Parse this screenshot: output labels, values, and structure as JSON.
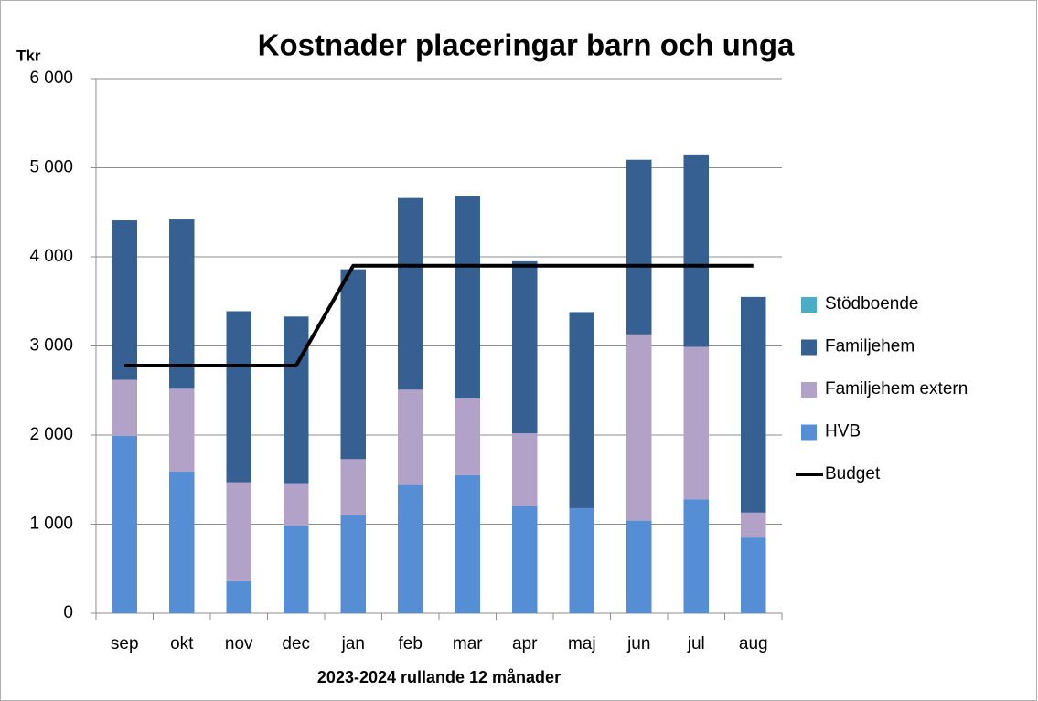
{
  "chart_data": {
    "type": "stacked_bar_line",
    "title": "Kostnader placeringar barn och unga",
    "y_label": "Tkr",
    "x_label": "2023-2024 rullande 12 månader",
    "categories": [
      "sep",
      "okt",
      "nov",
      "dec",
      "jan",
      "feb",
      "mar",
      "apr",
      "maj",
      "jun",
      "jul",
      "aug"
    ],
    "series": [
      {
        "name": "Stödboende",
        "color": "#4bacc6",
        "kind": "bar",
        "values": [
          0,
          0,
          0,
          0,
          0,
          0,
          0,
          0,
          0,
          0,
          0,
          0
        ]
      },
      {
        "name": "Familjehem",
        "color": "#376092",
        "kind": "bar",
        "values": [
          1790,
          1900,
          1920,
          1880,
          2130,
          2150,
          2270,
          1930,
          2200,
          1960,
          2150,
          2420
        ]
      },
      {
        "name": "Familjehem extern",
        "color": "#b3a2c7",
        "kind": "bar",
        "values": [
          630,
          930,
          1110,
          470,
          630,
          1070,
          860,
          820,
          0,
          2090,
          1710,
          280
        ]
      },
      {
        "name": "HVB",
        "color": "#558ed5",
        "kind": "bar",
        "values": [
          1990,
          1590,
          360,
          980,
          1100,
          1440,
          1550,
          1200,
          1180,
          1040,
          1280,
          850
        ]
      },
      {
        "name": "Budget",
        "color": "#000000",
        "kind": "line",
        "values": [
          2780,
          2780,
          2780,
          2780,
          3900,
          3900,
          3900,
          3900,
          3900,
          3900,
          3900,
          3900
        ]
      }
    ],
    "ylim": [
      0,
      6000
    ],
    "yticks": [
      0,
      {
        "value": 1000,
        "label": "1 000"
      },
      {
        "value": 2000,
        "label": "2 000"
      },
      {
        "value": 3000,
        "label": "3 000"
      },
      {
        "value": 4000,
        "label": "4 000"
      },
      {
        "value": 5000,
        "label": "5 000"
      },
      {
        "value": 6000,
        "label": "6 000"
      }
    ],
    "grid": true,
    "legend": "right"
  }
}
